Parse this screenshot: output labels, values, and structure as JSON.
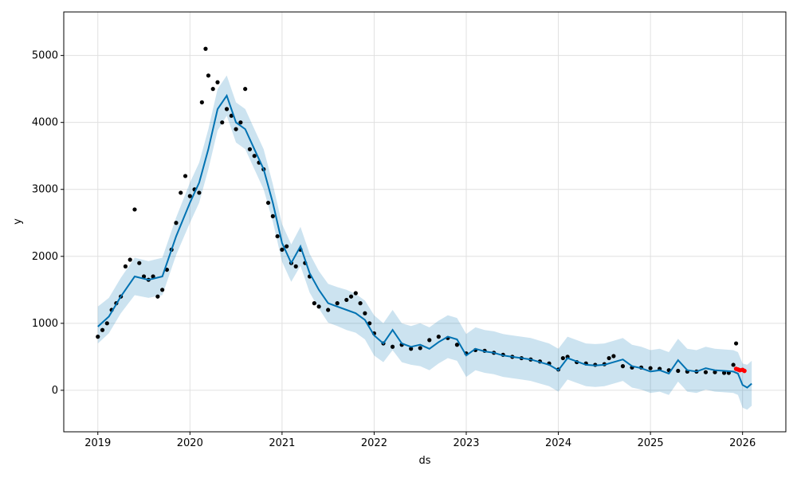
{
  "chart_data": {
    "type": "line",
    "title": "",
    "xlabel": "ds",
    "ylabel": "y",
    "x_tick_labels": [
      "2019",
      "2020",
      "2021",
      "2022",
      "2023",
      "2024",
      "2025",
      "2026"
    ],
    "y_tick_labels": [
      "0",
      "1000",
      "2000",
      "3000",
      "4000",
      "5000"
    ],
    "xlim": [
      2018.63,
      2026.47
    ],
    "ylim": [
      -620,
      5650
    ],
    "grid": true,
    "colors": {
      "observed": "#000000",
      "forecast_line": "#0072B2",
      "uncertainty_band": "#0072B2",
      "recent_points": "#ff0000"
    },
    "series": [
      {
        "role": "forecast",
        "x": [
          2019.0,
          2019.12,
          2019.25,
          2019.4,
          2019.55,
          2019.7,
          2019.85,
          2020.0,
          2020.1,
          2020.2,
          2020.3,
          2020.4,
          2020.5,
          2020.6,
          2020.7,
          2020.8,
          2020.9,
          2021.0,
          2021.1,
          2021.2,
          2021.3,
          2021.4,
          2021.5,
          2021.6,
          2021.7,
          2021.8,
          2021.9,
          2022.0,
          2022.1,
          2022.2,
          2022.3,
          2022.4,
          2022.5,
          2022.6,
          2022.7,
          2022.8,
          2022.9,
          2023.0,
          2023.1,
          2023.2,
          2023.3,
          2023.4,
          2023.5,
          2023.6,
          2023.7,
          2023.8,
          2023.9,
          2024.0,
          2024.1,
          2024.2,
          2024.3,
          2024.4,
          2024.5,
          2024.6,
          2024.7,
          2024.8,
          2024.9,
          2025.0,
          2025.1,
          2025.2,
          2025.3,
          2025.4,
          2025.5,
          2025.6,
          2025.7,
          2025.8,
          2025.9,
          2025.95,
          2026.0,
          2026.05,
          2026.1
        ],
        "y": [
          950,
          1100,
          1400,
          1700,
          1650,
          1700,
          2300,
          2800,
          3100,
          3600,
          4200,
          4400,
          4000,
          3900,
          3600,
          3300,
          2800,
          2200,
          1900,
          2150,
          1750,
          1500,
          1300,
          1250,
          1200,
          1150,
          1050,
          820,
          700,
          900,
          700,
          650,
          680,
          620,
          720,
          800,
          760,
          520,
          620,
          580,
          560,
          520,
          500,
          480,
          460,
          420,
          380,
          300,
          480,
          430,
          380,
          370,
          380,
          420,
          460,
          360,
          330,
          280,
          300,
          250,
          450,
          300,
          280,
          330,
          300,
          290,
          280,
          250,
          80,
          40,
          100
        ]
      },
      {
        "role": "forecast_lower",
        "x": [
          2019.0,
          2019.12,
          2019.25,
          2019.4,
          2019.55,
          2019.7,
          2019.85,
          2020.0,
          2020.1,
          2020.2,
          2020.3,
          2020.4,
          2020.5,
          2020.6,
          2020.7,
          2020.8,
          2020.9,
          2021.0,
          2021.1,
          2021.2,
          2021.3,
          2021.4,
          2021.5,
          2021.6,
          2021.7,
          2021.8,
          2021.9,
          2022.0,
          2022.1,
          2022.2,
          2022.3,
          2022.4,
          2022.5,
          2022.6,
          2022.7,
          2022.8,
          2022.9,
          2023.0,
          2023.1,
          2023.2,
          2023.3,
          2023.4,
          2023.5,
          2023.6,
          2023.7,
          2023.8,
          2023.9,
          2024.0,
          2024.1,
          2024.2,
          2024.3,
          2024.4,
          2024.5,
          2024.6,
          2024.7,
          2024.8,
          2024.9,
          2025.0,
          2025.1,
          2025.2,
          2025.3,
          2025.4,
          2025.5,
          2025.6,
          2025.7,
          2025.8,
          2025.9,
          2025.95,
          2026.0,
          2026.05,
          2026.1
        ],
        "y": [
          700,
          850,
          1150,
          1420,
          1380,
          1420,
          2020,
          2500,
          2800,
          3300,
          3880,
          4100,
          3700,
          3600,
          3300,
          3000,
          2520,
          1920,
          1620,
          1860,
          1460,
          1220,
          1010,
          960,
          900,
          860,
          760,
          520,
          420,
          600,
          420,
          380,
          360,
          300,
          400,
          480,
          440,
          200,
          300,
          260,
          240,
          200,
          180,
          160,
          140,
          100,
          60,
          -20,
          160,
          110,
          60,
          50,
          60,
          100,
          140,
          40,
          10,
          -40,
          -20,
          -70,
          130,
          -20,
          -40,
          10,
          -20,
          -30,
          -40,
          -70,
          -260,
          -290,
          -230
        ]
      },
      {
        "role": "forecast_upper",
        "x": [
          2019.0,
          2019.12,
          2019.25,
          2019.4,
          2019.55,
          2019.7,
          2019.85,
          2020.0,
          2020.1,
          2020.2,
          2020.3,
          2020.4,
          2020.5,
          2020.6,
          2020.7,
          2020.8,
          2020.9,
          2021.0,
          2021.1,
          2021.2,
          2021.3,
          2021.4,
          2021.5,
          2021.6,
          2021.7,
          2021.8,
          2021.9,
          2022.0,
          2022.1,
          2022.2,
          2022.3,
          2022.4,
          2022.5,
          2022.6,
          2022.7,
          2022.8,
          2022.9,
          2023.0,
          2023.1,
          2023.2,
          2023.3,
          2023.4,
          2023.5,
          2023.6,
          2023.7,
          2023.8,
          2023.9,
          2024.0,
          2024.1,
          2024.2,
          2024.3,
          2024.4,
          2024.5,
          2024.6,
          2024.7,
          2024.8,
          2024.9,
          2025.0,
          2025.1,
          2025.2,
          2025.3,
          2025.4,
          2025.5,
          2025.6,
          2025.7,
          2025.8,
          2025.9,
          2025.95,
          2026.0,
          2026.05,
          2026.1
        ],
        "y": [
          1250,
          1380,
          1680,
          1980,
          1930,
          1980,
          2580,
          3100,
          3400,
          3900,
          4500,
          4700,
          4300,
          4200,
          3900,
          3600,
          3080,
          2480,
          2180,
          2440,
          2040,
          1780,
          1590,
          1540,
          1500,
          1440,
          1340,
          1120,
          1000,
          1200,
          1000,
          960,
          1000,
          940,
          1040,
          1120,
          1080,
          840,
          940,
          900,
          880,
          840,
          820,
          800,
          780,
          740,
          700,
          620,
          800,
          750,
          700,
          690,
          700,
          740,
          780,
          680,
          650,
          600,
          620,
          570,
          770,
          620,
          600,
          650,
          620,
          610,
          600,
          570,
          400,
          380,
          440
        ]
      },
      {
        "role": "observed",
        "x": [
          2019.0,
          2019.05,
          2019.1,
          2019.15,
          2019.2,
          2019.25,
          2019.3,
          2019.35,
          2019.4,
          2019.45,
          2019.5,
          2019.55,
          2019.6,
          2019.65,
          2019.7,
          2019.75,
          2019.8,
          2019.85,
          2019.9,
          2019.95,
          2020.0,
          2020.05,
          2020.1,
          2020.13,
          2020.17,
          2020.2,
          2020.25,
          2020.3,
          2020.35,
          2020.4,
          2020.45,
          2020.5,
          2020.55,
          2020.6,
          2020.65,
          2020.7,
          2020.75,
          2020.8,
          2020.85,
          2020.9,
          2020.95,
          2021.0,
          2021.05,
          2021.1,
          2021.15,
          2021.2,
          2021.25,
          2021.3,
          2021.35,
          2021.4,
          2021.5,
          2021.6,
          2021.7,
          2021.75,
          2021.8,
          2021.85,
          2021.9,
          2021.95,
          2022.0,
          2022.1,
          2022.2,
          2022.3,
          2022.4,
          2022.5,
          2022.6,
          2022.7,
          2022.8,
          2022.9,
          2023.0,
          2023.1,
          2023.2,
          2023.3,
          2023.4,
          2023.5,
          2023.6,
          2023.7,
          2023.8,
          2023.9,
          2024.0,
          2024.05,
          2024.1,
          2024.2,
          2024.3,
          2024.4,
          2024.5,
          2024.55,
          2024.6,
          2024.7,
          2024.8,
          2024.9,
          2025.0,
          2025.1,
          2025.2,
          2025.3,
          2025.4,
          2025.5,
          2025.6,
          2025.7,
          2025.8,
          2025.85,
          2025.9,
          2025.93
        ],
        "y": [
          800,
          900,
          1000,
          1200,
          1300,
          1400,
          1850,
          1950,
          2700,
          1900,
          1700,
          1650,
          1700,
          1400,
          1500,
          1800,
          2100,
          2500,
          2950,
          3200,
          2900,
          3000,
          2950,
          4300,
          5100,
          4700,
          4500,
          4600,
          4000,
          4200,
          4100,
          3900,
          4000,
          4500,
          3600,
          3500,
          3400,
          3300,
          2800,
          2600,
          2300,
          2100,
          2150,
          1900,
          1850,
          2100,
          1900,
          1700,
          1300,
          1250,
          1200,
          1300,
          1350,
          1400,
          1450,
          1300,
          1150,
          1000,
          850,
          700,
          650,
          680,
          620,
          630,
          750,
          800,
          780,
          680,
          550,
          600,
          590,
          560,
          530,
          500,
          480,
          460,
          430,
          400,
          310,
          480,
          500,
          420,
          400,
          380,
          390,
          480,
          510,
          360,
          340,
          340,
          330,
          320,
          300,
          290,
          280,
          280,
          270,
          270,
          260,
          260,
          380,
          700
        ]
      },
      {
        "role": "recent",
        "x": [
          2025.93,
          2025.95,
          2025.97,
          2026.0,
          2026.02
        ],
        "y": [
          320,
          310,
          300,
          305,
          290
        ]
      }
    ]
  }
}
